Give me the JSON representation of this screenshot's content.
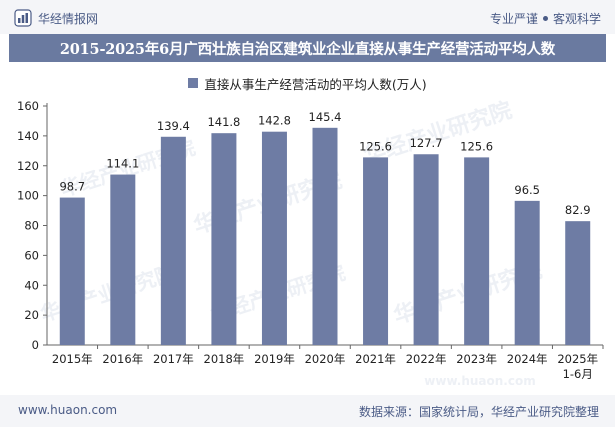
{
  "header": {
    "brand_name": "华经情报网",
    "tagline_left": "专业严谨",
    "tagline_right": "客观科学"
  },
  "footer": {
    "url": "www.huaon.com",
    "source": "数据来源：国家统计局，华经产业研究院整理"
  },
  "watermarks": [
    "华经产业研究院",
    "www.huaon.com"
  ],
  "colors": {
    "bar": "#6e7ca4",
    "title_bar": "#6a7aa0",
    "accent": "#4a5b86"
  },
  "chart_data": {
    "type": "bar",
    "title": "2015-2025年6月广西壮族自治区建筑业企业直接从事生产经营活动平均人数",
    "categories": [
      "2015年",
      "2016年",
      "2017年",
      "2018年",
      "2019年",
      "2020年",
      "2021年",
      "2022年",
      "2023年",
      "2024年",
      "2025年"
    ],
    "category_sublabels": [
      "",
      "",
      "",
      "",
      "",
      "",
      "",
      "",
      "",
      "",
      "1-6月"
    ],
    "series": [
      {
        "name": "直接从事生产经营活动的平均人数(万人)",
        "values": [
          98.7,
          114.1,
          139.4,
          141.8,
          142.8,
          145.4,
          125.6,
          127.7,
          125.6,
          96.5,
          82.9
        ]
      }
    ],
    "data_labels": [
      "98.7",
      "114.1",
      "139.4",
      "141.8",
      "142.8",
      "145.4",
      "125.6",
      "127.7",
      "125.6",
      "96.5",
      "82.9"
    ],
    "ylim": [
      0,
      160
    ],
    "yticks": [
      0,
      20,
      40,
      60,
      80,
      100,
      120,
      140,
      160
    ],
    "xlabel": "",
    "ylabel": "",
    "grid": false,
    "legend_position": "top-center"
  }
}
